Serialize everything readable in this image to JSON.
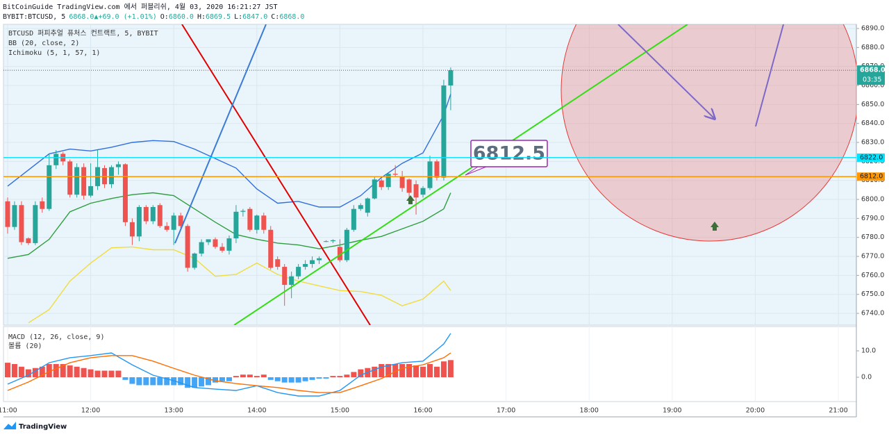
{
  "header": {
    "publisher": "BitCoinGuide TradingView.com 에서 퍼블리쉬, 4월 03, 2020 16:21:27 JST",
    "symbol": "BYBIT:BTCUSD, 5",
    "price": "6868.0",
    "change": "+69.0 (+1.01%)",
    "ohlc": [
      {
        "k": "O:",
        "v": "6860.0"
      },
      {
        "k": "H:",
        "v": "6869.5"
      },
      {
        "k": "L:",
        "v": "6847.0"
      },
      {
        "k": "C:",
        "v": "6868.0"
      }
    ]
  },
  "footer": {
    "brand": "TradingView"
  },
  "chart_data": [
    {
      "type": "candlestick",
      "legend": [
        "BTCUSD 퍼피추얼 퓨처스 컨트랙트, 5, BYBIT",
        "BB (20, close, 2)",
        "Ichimoku (5, 1, 57, 1)"
      ],
      "up_color": "#26a69a",
      "down_color": "#ef5350",
      "grid": true,
      "x": [
        "11:00",
        "11:05",
        "11:10",
        "11:15",
        "11:20",
        "11:25",
        "11:30",
        "11:35",
        "11:40",
        "11:45",
        "11:50",
        "11:55",
        "12:00",
        "12:05",
        "12:10",
        "12:15",
        "12:20",
        "12:25",
        "12:30",
        "12:35",
        "12:40",
        "12:45",
        "12:50",
        "12:55",
        "13:00",
        "13:05",
        "13:10",
        "13:15",
        "13:20",
        "13:25",
        "13:30",
        "13:35",
        "13:40",
        "13:45",
        "13:50",
        "13:55",
        "14:00",
        "14:05",
        "14:10",
        "14:15",
        "14:20",
        "14:25",
        "14:30",
        "14:35",
        "14:40",
        "14:45",
        "14:50",
        "14:55",
        "15:00",
        "15:05",
        "15:10",
        "15:15",
        "15:20",
        "15:25",
        "15:30",
        "15:35",
        "15:40",
        "15:45",
        "15:50",
        "15:55",
        "16:00",
        "16:05",
        "16:10",
        "16:15",
        "16:20"
      ],
      "open": [
        6799,
        6785.5,
        6797,
        6779.5,
        6777,
        6799,
        6795,
        6818,
        6824,
        6820,
        6802.5,
        6817,
        6802,
        6807,
        6816.5,
        6808,
        6817,
        6818.5,
        6788,
        6780.5,
        6796,
        6788.5,
        6797,
        6786,
        6784,
        6791.5,
        6786,
        6764,
        6771.5,
        6777.5,
        6779,
        6775,
        6773,
        6779.5,
        6793.5,
        6795,
        6784,
        6791.5,
        6784,
        6768.5,
        6764.5,
        6755,
        6759.5,
        6764.5,
        6766,
        6768,
        6778,
        6778,
        6775,
        6768,
        6784,
        6795,
        6793,
        6800.5,
        6810,
        6806.5,
        6813.5,
        6812,
        6810.5,
        6808,
        6802.5,
        6806,
        6820,
        6811.5,
        6860
      ],
      "high": [
        6801,
        6799,
        6799,
        6780,
        6799,
        6801,
        6824,
        6826,
        6825,
        6821,
        6819,
        6819,
        6819,
        6826,
        6818,
        6818,
        6820,
        6819,
        6790,
        6797,
        6797,
        6797,
        6798,
        6788,
        6793,
        6793,
        6787,
        6772,
        6779,
        6779,
        6780,
        6777,
        6781,
        6797,
        6795,
        6796,
        6792,
        6793,
        6786,
        6770,
        6766,
        6762,
        6766,
        6768,
        6770,
        6770,
        6778.5,
        6779,
        6779,
        6785,
        6797,
        6798,
        6801,
        6812,
        6811,
        6814,
        6818,
        6815,
        6811,
        6810,
        6807,
        6823,
        6821,
        6863,
        6869.5
      ],
      "low": [
        6782,
        6784,
        6776,
        6776,
        6776,
        6793,
        6794,
        6816,
        6818,
        6801,
        6801,
        6800,
        6801,
        6805,
        6806,
        6806,
        6813,
        6786,
        6776,
        6778,
        6787,
        6787,
        6785,
        6783,
        6776,
        6785,
        6762,
        6763,
        6770,
        6776,
        6774,
        6772,
        6771,
        6777,
        6791,
        6783,
        6782,
        6782,
        6763,
        6763,
        6744,
        6748,
        6758,
        6763,
        6764,
        6766,
        6777.5,
        6777,
        6767,
        6767,
        6783,
        6794,
        6791,
        6800,
        6805,
        6805,
        6812,
        6804,
        6801,
        6792,
        6801,
        6805,
        6810,
        6810,
        6847
      ],
      "close": [
        6785.5,
        6797,
        6777.5,
        6777,
        6797,
        6795,
        6818,
        6824,
        6820,
        6802.5,
        6817,
        6802,
        6807,
        6817,
        6808,
        6817,
        6818.5,
        6788,
        6780.5,
        6796,
        6788.5,
        6796,
        6786,
        6784,
        6791.5,
        6786,
        6764,
        6771.5,
        6777.5,
        6779,
        6775,
        6773,
        6779.5,
        6793.5,
        6794,
        6784,
        6791.5,
        6784,
        6764,
        6764.5,
        6755,
        6759.5,
        6764.5,
        6766,
        6768,
        6769,
        6778,
        6778.5,
        6768,
        6784,
        6795,
        6797,
        6800.5,
        6810.5,
        6806.5,
        6813.5,
        6813,
        6806,
        6803.5,
        6801,
        6806,
        6820,
        6811.5,
        6860,
        6868
      ],
      "overlays": [
        {
          "color": "#2f6fdc",
          "x": [
            "11:00",
            "11:15",
            "11:30",
            "11:45",
            "12:00",
            "12:15",
            "12:30",
            "12:45",
            "13:00",
            "13:15",
            "13:30",
            "13:45",
            "14:00",
            "14:15",
            "14:30",
            "14:45",
            "15:00",
            "15:15",
            "15:30",
            "15:45",
            "16:00",
            "16:15",
            "16:20"
          ],
          "values": [
            6807,
            6815.5,
            6824,
            6826.5,
            6825.5,
            6827.5,
            6830,
            6831,
            6830.5,
            6826.5,
            6821.5,
            6816.5,
            6805.5,
            6798,
            6799,
            6796,
            6796,
            6802,
            6811.5,
            6819,
            6824.5,
            6844.5,
            6855.5
          ]
        },
        {
          "color": "#2e9e3e",
          "x": [
            "11:00",
            "11:15",
            "11:30",
            "11:45",
            "12:00",
            "12:15",
            "12:30",
            "12:45",
            "13:00",
            "13:15",
            "13:30",
            "13:45",
            "14:00",
            "14:15",
            "14:30",
            "14:45",
            "15:00",
            "15:15",
            "15:30",
            "15:45",
            "16:00",
            "16:15",
            "16:20"
          ],
          "values": [
            6769,
            6771,
            6779,
            6793.5,
            6798,
            6800.5,
            6802.5,
            6803.5,
            6802,
            6795,
            6788,
            6781.5,
            6779,
            6777,
            6776,
            6774,
            6776,
            6778.5,
            6780.5,
            6784.5,
            6788.5,
            6795,
            6803.5
          ]
        },
        {
          "color": "#f2dc3a",
          "x": [
            "11:00",
            "11:15",
            "11:30",
            "11:45",
            "12:00",
            "12:15",
            "12:30",
            "12:45",
            "13:00",
            "13:15",
            "13:30",
            "13:45",
            "14:00",
            "14:15",
            "14:30",
            "14:45",
            "15:00",
            "15:15",
            "15:30",
            "15:45",
            "16:00",
            "16:15",
            "16:20"
          ],
          "values": [
            null,
            6735,
            6742,
            6757,
            6766.5,
            6774.5,
            6775,
            6773.5,
            6773.5,
            6769,
            6759.5,
            6760.5,
            6766.5,
            6760.5,
            6757,
            6754.5,
            6752,
            6751.5,
            6749.5,
            6744,
            6747.5,
            6757,
            6752
          ]
        }
      ],
      "hlines": [
        {
          "value": 6822,
          "label": "6822.0",
          "color": "#00e5ff"
        },
        {
          "value": 6812,
          "label": "6812.0",
          "color": "#ff9800"
        }
      ],
      "last_price": {
        "value": 6868,
        "label": "6868.0",
        "countdown": "03:35",
        "color": "#26a69a"
      },
      "annotation": 6812.5,
      "xlim": [
        "10:57",
        "21:13"
      ],
      "xticks": [
        "11:00",
        "12:00",
        "13:00",
        "14:00",
        "15:00",
        "16:00",
        "17:00",
        "18:00",
        "19:00",
        "20:00",
        "21:00"
      ],
      "ylim": [
        6733.8,
        6892.2
      ],
      "yticks": [
        {
          "value": 6740,
          "label": "6740.0"
        },
        {
          "value": 6750,
          "label": "6750.0"
        },
        {
          "value": 6760,
          "label": "6760.0"
        },
        {
          "value": 6770,
          "label": "6770.0"
        },
        {
          "value": 6780,
          "label": "6780.0"
        },
        {
          "value": 6790,
          "label": "6790.0"
        },
        {
          "value": 6800,
          "label": "6800.0"
        },
        {
          "value": 6810,
          "label": "6810.0"
        },
        {
          "value": 6820,
          "label": "6820.0"
        },
        {
          "value": 6830,
          "label": "6830.0"
        },
        {
          "value": 6840,
          "label": "6840.0"
        },
        {
          "value": 6850,
          "label": "6850.0"
        },
        {
          "value": 6860,
          "label": "6860.0"
        },
        {
          "value": 6870,
          "label": "6870.0"
        },
        {
          "value": 6880,
          "label": "6880.0"
        },
        {
          "value": 6890,
          "label": "6890.0"
        }
      ]
    },
    {
      "type": "bar",
      "legend": [
        "MACD (12, 26, close, 9)",
        "볼륨 (20)"
      ],
      "up_color": "#ef5350",
      "down_color": "#42a5f5",
      "x": [
        "11:00",
        "11:05",
        "11:10",
        "11:15",
        "11:20",
        "11:25",
        "11:30",
        "11:35",
        "11:40",
        "11:45",
        "11:50",
        "11:55",
        "12:00",
        "12:05",
        "12:10",
        "12:15",
        "12:20",
        "12:25",
        "12:30",
        "12:35",
        "12:40",
        "12:45",
        "12:50",
        "12:55",
        "13:00",
        "13:05",
        "13:10",
        "13:15",
        "13:20",
        "13:25",
        "13:30",
        "13:35",
        "13:40",
        "13:45",
        "13:50",
        "13:55",
        "14:00",
        "14:05",
        "14:10",
        "14:15",
        "14:20",
        "14:25",
        "14:30",
        "14:35",
        "14:40",
        "14:45",
        "14:50",
        "14:55",
        "15:00",
        "15:05",
        "15:10",
        "15:15",
        "15:20",
        "15:25",
        "15:30",
        "15:35",
        "15:40",
        "15:45",
        "15:50",
        "15:55",
        "16:00",
        "16:05",
        "16:10",
        "16:15",
        "16:20"
      ],
      "values": [
        5.5,
        5,
        4,
        3,
        3.5,
        4,
        5,
        5,
        5,
        4.5,
        4,
        3.5,
        3,
        2.5,
        2.5,
        2.5,
        2.5,
        -1,
        -2.5,
        -3,
        -3,
        -3,
        -3,
        -3,
        -3,
        -3,
        -4,
        -4,
        -3.5,
        -3,
        -2,
        -1.5,
        -1.5,
        0.5,
        1,
        1,
        0.5,
        1,
        -1,
        -1.5,
        -2,
        -2,
        -2,
        -1.5,
        -1,
        -0.5,
        -0.5,
        0.5,
        0.5,
        1,
        2,
        3,
        3.5,
        4,
        5,
        5,
        5,
        5,
        5,
        4.5,
        4,
        5,
        4,
        6,
        6.5
      ],
      "series": [
        {
          "color": "#2196f3",
          "x": [
            "11:00",
            "11:15",
            "11:30",
            "11:45",
            "12:00",
            "12:15",
            "12:30",
            "12:45",
            "13:00",
            "13:15",
            "13:30",
            "13:45",
            "14:00",
            "14:15",
            "14:30",
            "14:45",
            "15:00",
            "15:15",
            "15:30",
            "15:45",
            "16:00",
            "16:15",
            "16:20"
          ],
          "values": [
            -2.6,
            0.8,
            5.5,
            7.4,
            8.2,
            9.2,
            4.7,
            0.8,
            -1.3,
            -3.9,
            -4.5,
            -5,
            -3.2,
            -5.8,
            -7.1,
            -7.1,
            -5,
            0.8,
            3.9,
            5.5,
            6.1,
            12.6,
            16.6
          ]
        },
        {
          "color": "#ff6d00",
          "x": [
            "11:00",
            "11:15",
            "11:30",
            "11:45",
            "12:00",
            "12:15",
            "12:30",
            "12:45",
            "13:00",
            "13:15",
            "13:30",
            "13:45",
            "14:00",
            "14:15",
            "14:30",
            "14:45",
            "15:00",
            "15:15",
            "15:30",
            "15:45",
            "16:00",
            "16:15",
            "16:20"
          ],
          "values": [
            -5,
            -1.8,
            2.1,
            5.5,
            7.4,
            8.2,
            8.2,
            6.1,
            3.4,
            0.8,
            -1.3,
            -2.4,
            -3.2,
            -3.9,
            -5,
            -5.8,
            -5.8,
            -3.2,
            -0.5,
            3.4,
            4.7,
            7.4,
            9.2
          ]
        }
      ],
      "ylim": [
        -9.2,
        19.2
      ],
      "yticks": [
        {
          "value": 10,
          "label": "10.0"
        },
        {
          "value": 0,
          "label": "0.0"
        }
      ]
    }
  ]
}
